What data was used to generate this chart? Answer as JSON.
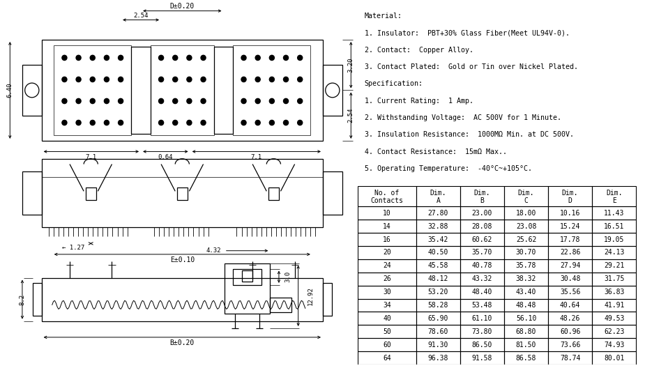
{
  "material_text": [
    "Material:",
    "1. Insulator:  PBT+30% Glass Fiber(Meet UL94V-0).",
    "2. Contact:  Copper Alloy.",
    "3. Contact Plated:  Gold or Tin over Nickel Plated.",
    "Specification:",
    "1. Current Rating:  1 Amp.",
    "2. Withstanding Voltage:  AC 500V for 1 Minute.",
    "3. Insulation Resistance:  1000MΩ Min. at DC 500V.",
    "4. Contact Resistance:  15mΩ Max..",
    "5. Operating Temperature:  -40°C~+105°C."
  ],
  "table_headers": [
    "No. of\nContacts",
    "Dim.\nA",
    "Dim.\nB",
    "Dim.\nC",
    "Dim.\nD",
    "Dim.\nE"
  ],
  "table_data": [
    [
      "10",
      "27.80",
      "23.00",
      "18.00",
      "10.16",
      "11.43"
    ],
    [
      "14",
      "32.88",
      "28.08",
      "23.08",
      "15.24",
      "16.51"
    ],
    [
      "16",
      "35.42",
      "60.62",
      "25.62",
      "17.78",
      "19.05"
    ],
    [
      "20",
      "40.50",
      "35.70",
      "30.70",
      "22.86",
      "24.13"
    ],
    [
      "24",
      "45.58",
      "40.78",
      "35.78",
      "27.94",
      "29.21"
    ],
    [
      "26",
      "48.12",
      "43.32",
      "38.32",
      "30.48",
      "31.75"
    ],
    [
      "30",
      "53.20",
      "48.40",
      "43.40",
      "35.56",
      "36.83"
    ],
    [
      "34",
      "58.28",
      "53.48",
      "48.48",
      "40.64",
      "41.91"
    ],
    [
      "40",
      "65.90",
      "61.10",
      "56.10",
      "48.26",
      "49.53"
    ],
    [
      "50",
      "78.60",
      "73.80",
      "68.80",
      "60.96",
      "62.23"
    ],
    [
      "60",
      "91.30",
      "86.50",
      "81.50",
      "73.66",
      "74.93"
    ],
    [
      "64",
      "96.38",
      "91.58",
      "86.58",
      "78.74",
      "80.01"
    ]
  ],
  "bg_color": "#ffffff",
  "line_color": "#000000",
  "font_size_text": 7.2,
  "font_size_table": 7.0,
  "font_size_dim": 6.5
}
